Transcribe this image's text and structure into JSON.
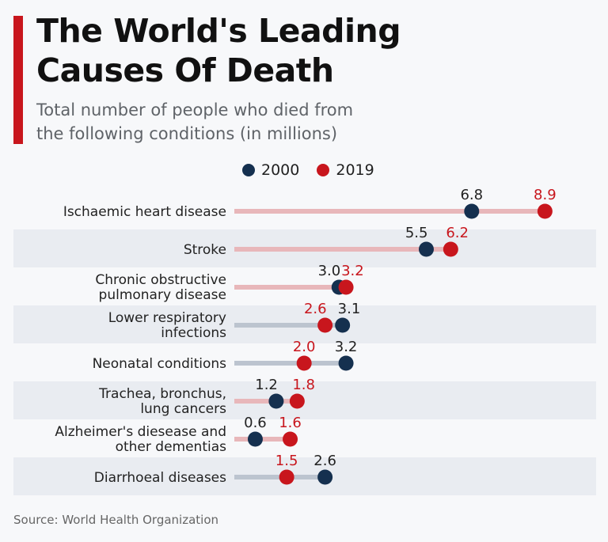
{
  "title_line1": "The World's Leading",
  "title_line2": "Causes Of Death",
  "subtitle_line1": "Total number of people who died from",
  "subtitle_line2": "the following conditions (in millions)",
  "source": "Source: World Health Organization",
  "colors": {
    "accent": "#c8161d",
    "series_2000": "#15304f",
    "series_2019": "#c8161d"
  },
  "chart_data": {
    "type": "scatter",
    "subtype": "dumbbell",
    "categories": [
      [
        "Ischaemic heart disease"
      ],
      [
        "Stroke"
      ],
      [
        "Chronic obstructive",
        "pulmonary disease"
      ],
      [
        "Lower respiratory",
        "infections"
      ],
      [
        "Neonatal conditions"
      ],
      [
        "Trachea, bronchus,",
        "lung cancers"
      ],
      [
        "Alzheimer's diesease and",
        "other dementias"
      ],
      [
        "Diarrhoeal diseases"
      ]
    ],
    "series": [
      {
        "name": "2000",
        "values": [
          6.8,
          5.5,
          3.0,
          3.1,
          3.2,
          1.2,
          0.6,
          2.6
        ]
      },
      {
        "name": "2019",
        "values": [
          8.9,
          6.2,
          3.2,
          2.6,
          2.0,
          1.8,
          1.6,
          1.5
        ]
      }
    ],
    "xlim": [
      0,
      9.3
    ],
    "legend": "top",
    "grid": false
  }
}
